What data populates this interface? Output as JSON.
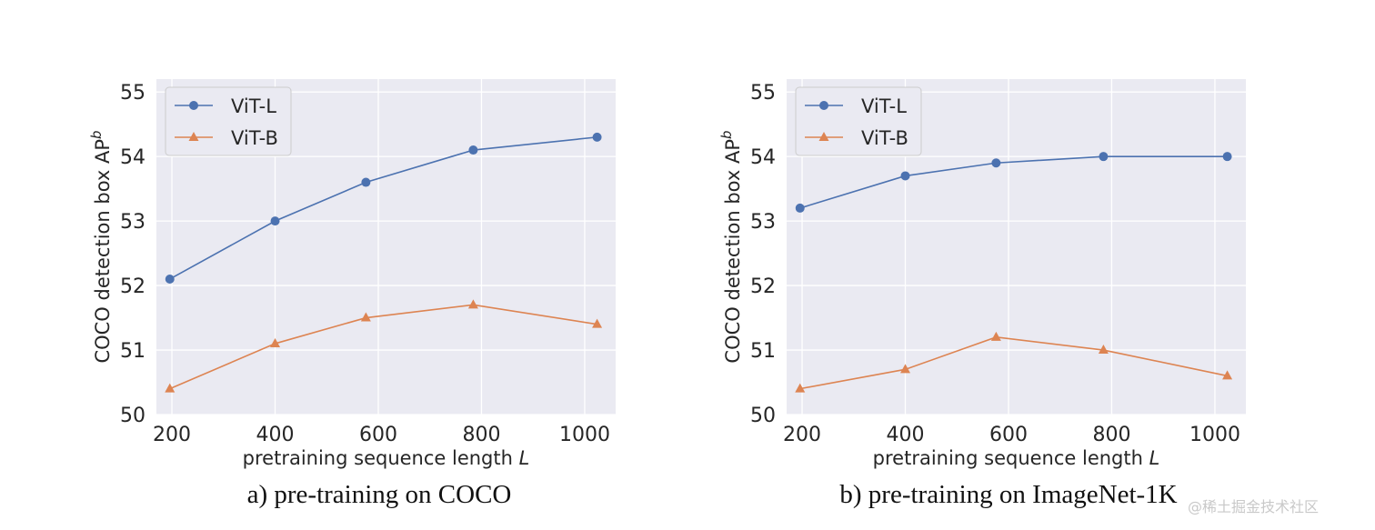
{
  "chart_data": [
    {
      "type": "line",
      "title": "",
      "caption": "a) pre-training on COCO",
      "xlabel": "pretraining sequence length",
      "xlabel_var": "L",
      "ylabel": "COCO detection box AP",
      "ylabel_sup": "b",
      "xlim": [
        170,
        1060
      ],
      "ylim": [
        50,
        55.2
      ],
      "xticks": [
        200,
        400,
        600,
        800,
        1000
      ],
      "yticks": [
        50,
        51,
        52,
        53,
        54,
        55
      ],
      "grid": true,
      "legend_position": "top-left",
      "background": "#eaeaf2",
      "x": [
        196,
        400,
        576,
        784,
        1024
      ],
      "series": [
        {
          "name": "ViT-L",
          "marker": "circle",
          "color": "#4c72b0",
          "values": [
            52.1,
            53.0,
            53.6,
            54.1,
            54.3
          ]
        },
        {
          "name": "ViT-B",
          "marker": "triangle",
          "color": "#dd8452",
          "values": [
            50.4,
            51.1,
            51.5,
            51.7,
            51.4
          ]
        }
      ]
    },
    {
      "type": "line",
      "title": "",
      "caption": "b) pre-training on ImageNet-1K",
      "xlabel": "pretraining sequence length",
      "xlabel_var": "L",
      "ylabel": "COCO detection box AP",
      "ylabel_sup": "b",
      "xlim": [
        170,
        1060
      ],
      "ylim": [
        50,
        55.2
      ],
      "xticks": [
        200,
        400,
        600,
        800,
        1000
      ],
      "yticks": [
        50,
        51,
        52,
        53,
        54,
        55
      ],
      "grid": true,
      "legend_position": "top-left",
      "background": "#eaeaf2",
      "x": [
        196,
        400,
        576,
        784,
        1024
      ],
      "series": [
        {
          "name": "ViT-L",
          "marker": "circle",
          "color": "#4c72b0",
          "values": [
            53.2,
            53.7,
            53.9,
            54.0,
            54.0
          ]
        },
        {
          "name": "ViT-B",
          "marker": "triangle",
          "color": "#dd8452",
          "values": [
            50.4,
            50.7,
            51.2,
            51.0,
            50.6
          ]
        }
      ]
    }
  ],
  "watermark": "@稀土掘金技术社区"
}
